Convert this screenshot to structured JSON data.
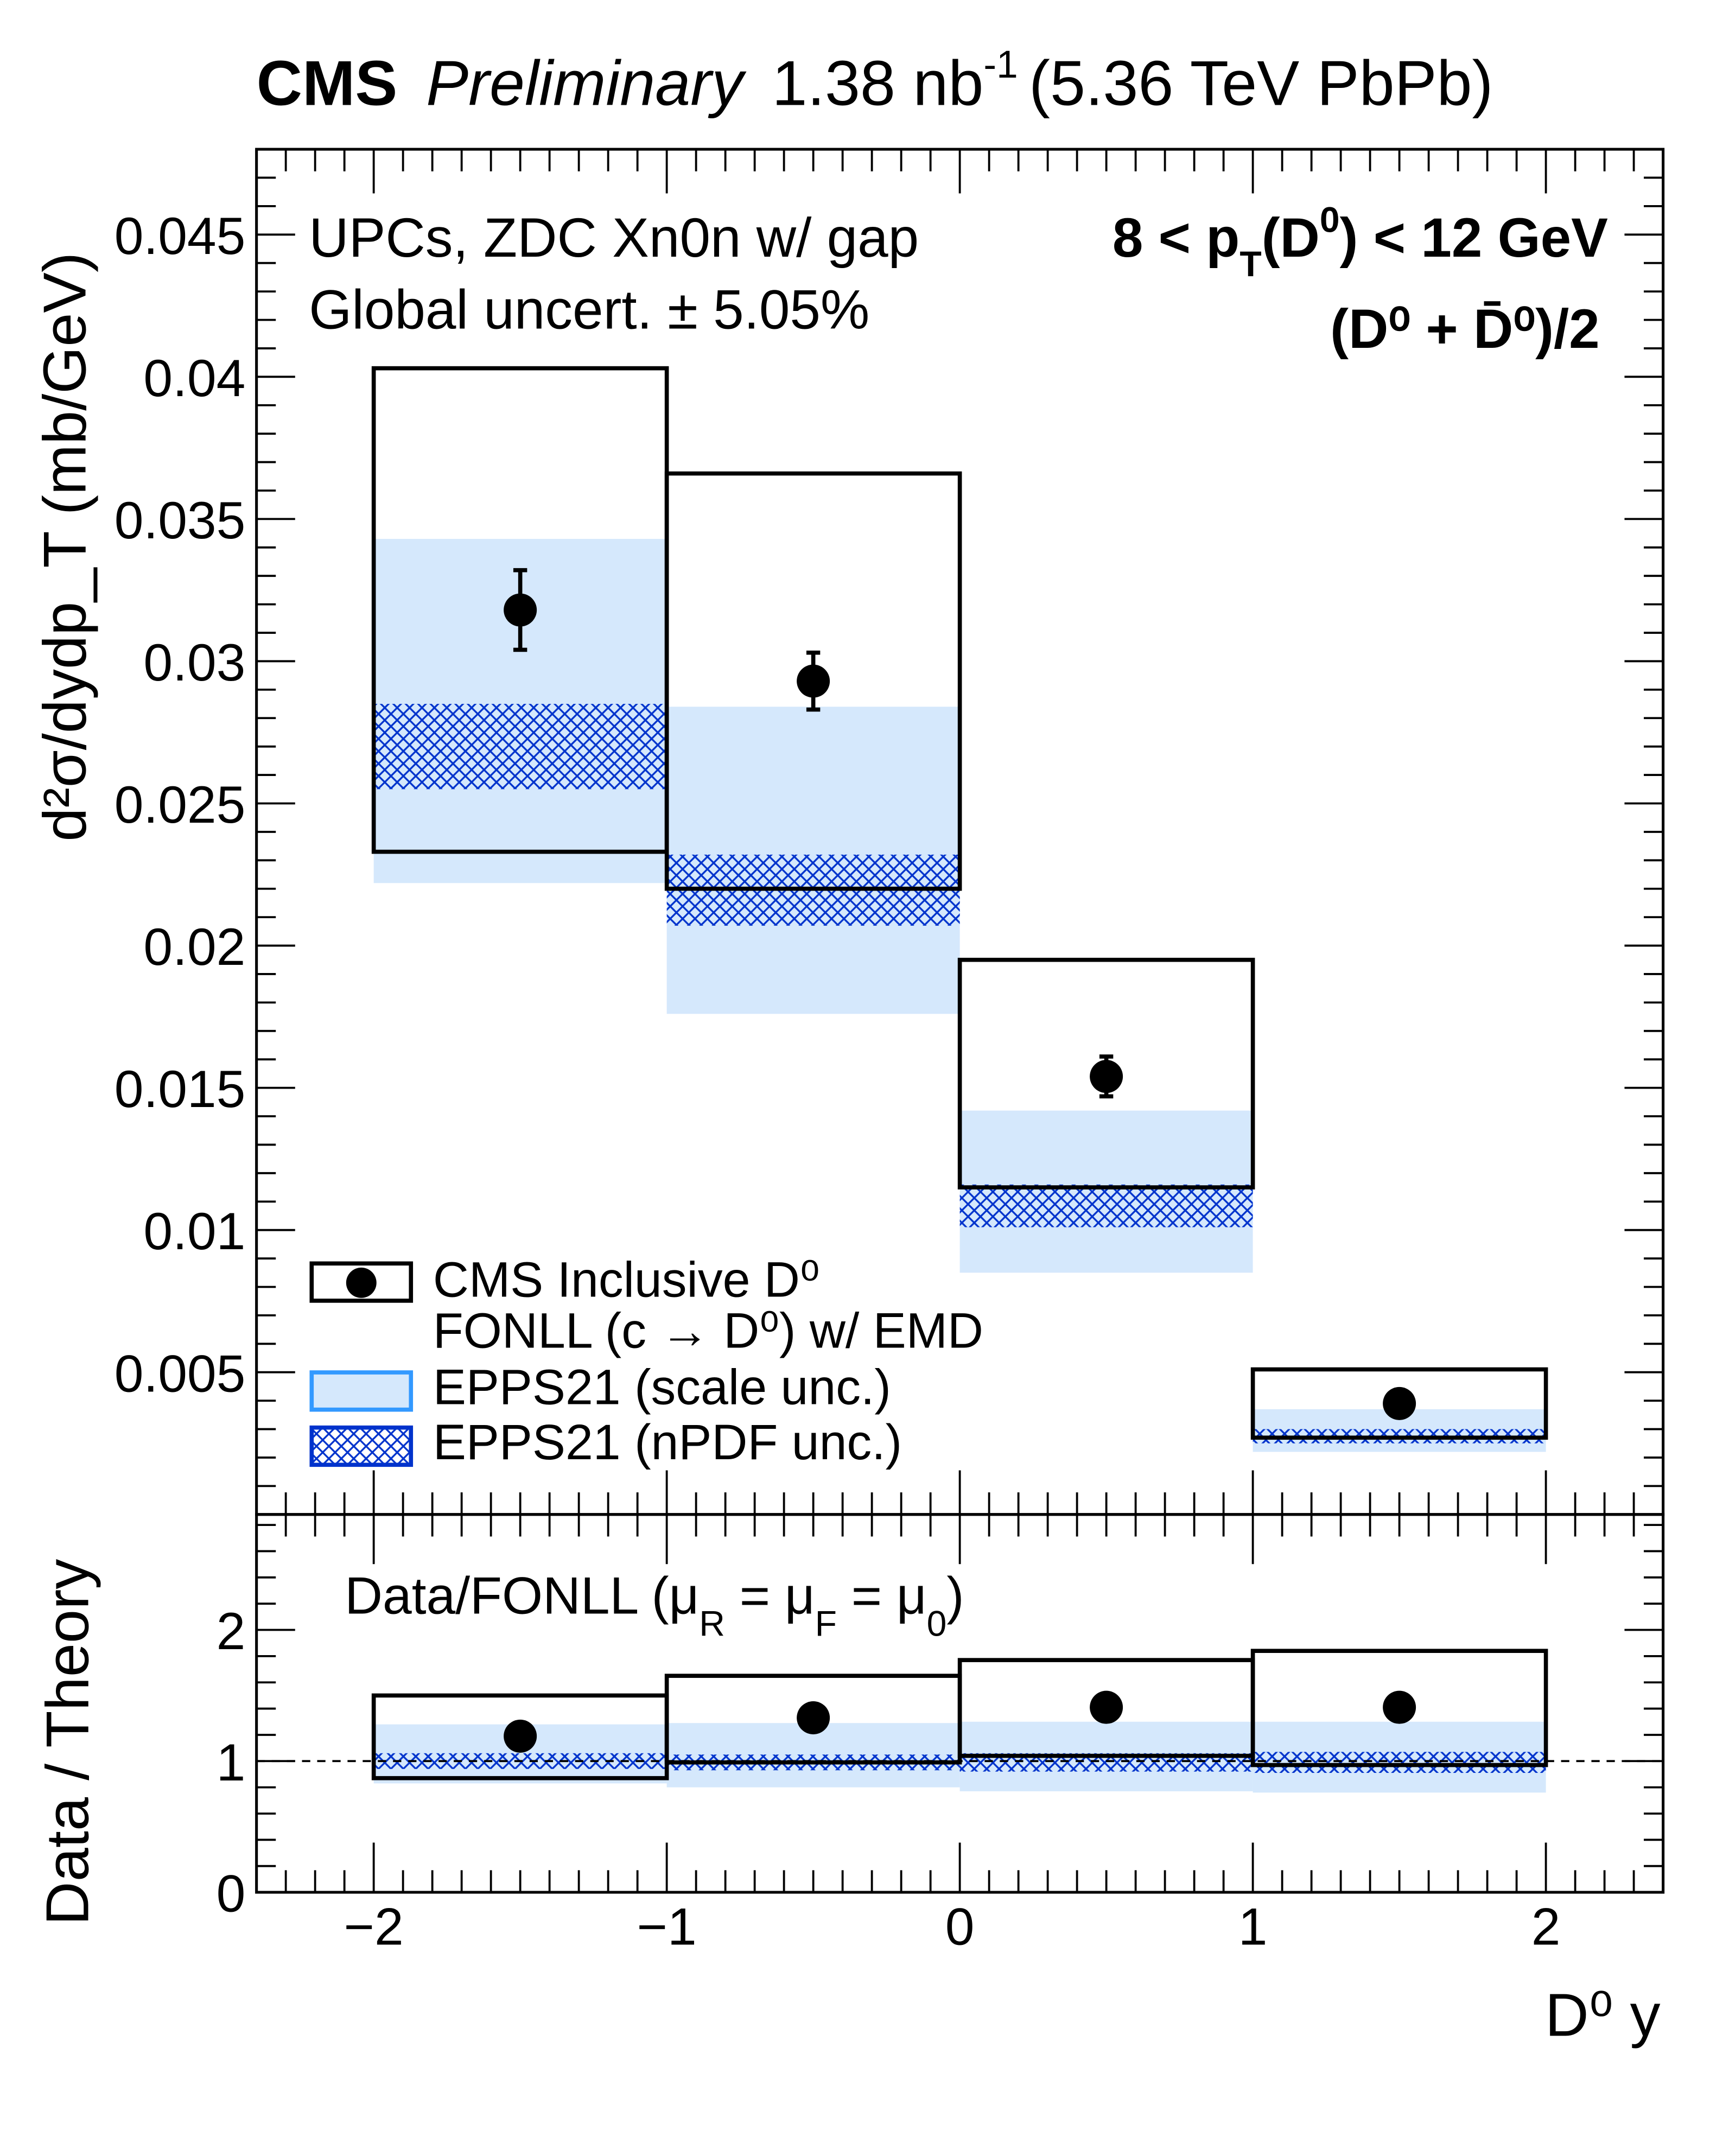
{
  "header": {
    "experiment": "CMS",
    "status": "Preliminary",
    "lumi": "1.38 nb",
    "lumi_exp": "-1",
    "energy": "(5.36 TeV PbPb)"
  },
  "annotations": {
    "selection": "UPCs, ZDC Xn0n w/ gap",
    "global_uncert": "Global uncert. ± 5.05%",
    "pt_range_pre": "8 < p",
    "pt_range_sub": "T",
    "pt_range_mid": "(D",
    "pt_range_sup": "0",
    "pt_range_post": ") < 12 GeV",
    "particle": "(D⁰ + D̄⁰)/2",
    "ratio_label_pre": "Data/FONLL (μ",
    "ratio_sub_R": "R",
    "ratio_mid1": " = μ",
    "ratio_sub_F": "F",
    "ratio_mid2": " = μ",
    "ratio_sub_0": "0",
    "ratio_post": ")"
  },
  "legend": {
    "data": "CMS Inclusive D⁰",
    "theory": "FONLL (c → D⁰) w/ EMD",
    "scale": "EPPS21 (scale unc.)",
    "npdf": "EPPS21 (nPDF unc.)"
  },
  "colors": {
    "scale_band": "#d5e8fc",
    "scale_border": "#3399ff",
    "npdf_hatch": "#0033cc",
    "data": "#000000"
  },
  "chart_data": [
    {
      "type": "scatter",
      "panel": "main",
      "xlabel": "D⁰ y",
      "ylabel": "d²σ/dydp_T (mb/GeV)",
      "xlim": [
        -2.4,
        2.4
      ],
      "ylim": [
        0,
        0.048
      ],
      "x_ticks": [
        "−2",
        "−1",
        "0",
        "1",
        "2"
      ],
      "y_ticks": [
        "0.005",
        "0.01",
        "0.015",
        "0.02",
        "0.025",
        "0.03",
        "0.035",
        "0.04",
        "0.045"
      ],
      "bins": [
        [
          -2,
          -1
        ],
        [
          -1,
          0
        ],
        [
          0,
          1
        ],
        [
          1,
          2
        ]
      ],
      "data": {
        "x": [
          -1.5,
          -0.5,
          0.5,
          1.5
        ],
        "y": [
          0.0318,
          0.0293,
          0.0154,
          0.0039
        ],
        "stat_err": [
          0.0014,
          0.001,
          0.0007,
          0.0002
        ],
        "syst_low": [
          0.0233,
          0.022,
          0.0115,
          0.0027
        ],
        "syst_high": [
          0.0403,
          0.0366,
          0.0195,
          0.0051
        ]
      },
      "scale_band": {
        "low": [
          0.0222,
          0.0176,
          0.0085,
          0.0022
        ],
        "high": [
          0.0343,
          0.0284,
          0.0142,
          0.0037
        ]
      },
      "npdf_band": {
        "low": [
          0.0255,
          0.0207,
          0.0101,
          0.0025
        ],
        "high": [
          0.0285,
          0.0232,
          0.0116,
          0.003
        ]
      }
    },
    {
      "type": "scatter",
      "panel": "ratio",
      "ylabel": "Data / Theory",
      "xlim": [
        -2.4,
        2.4
      ],
      "ylim": [
        0,
        2.88
      ],
      "y_ticks": [
        "0",
        "1",
        "2"
      ],
      "reference_line": 1,
      "data": {
        "x": [
          -1.5,
          -0.5,
          0.5,
          1.5
        ],
        "y": [
          1.19,
          1.33,
          1.41,
          1.41
        ],
        "syst_low": [
          0.87,
          0.99,
          1.04,
          0.97
        ],
        "syst_high": [
          1.5,
          1.65,
          1.77,
          1.84
        ]
      },
      "scale_band": {
        "low": [
          0.83,
          0.8,
          0.77,
          0.76
        ],
        "high": [
          1.28,
          1.29,
          1.3,
          1.3
        ]
      },
      "npdf_band": {
        "low": [
          0.94,
          0.93,
          0.92,
          0.91
        ],
        "high": [
          1.06,
          1.05,
          1.06,
          1.07
        ]
      }
    }
  ]
}
